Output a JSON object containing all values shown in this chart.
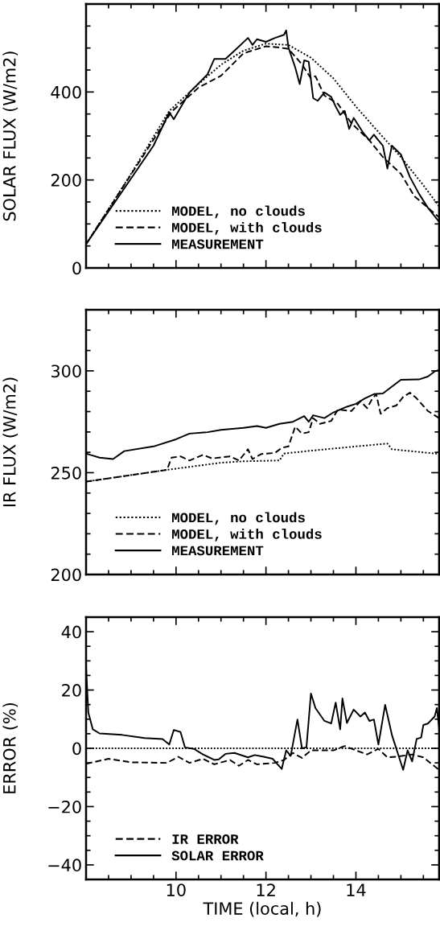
{
  "chart_data": [
    {
      "type": "line",
      "ylabel": "SOLAR FLUX (W/m2)",
      "xlim": [
        8,
        15.85
      ],
      "ylim": [
        0,
        600
      ],
      "xticks": [
        10,
        12,
        14
      ],
      "yticks": [
        0,
        200,
        400
      ],
      "tick_labels": "y",
      "legend": "bottom left",
      "series": [
        {
          "name": "MODEL, no clouds",
          "color": "#000000",
          "line_style": "dotted",
          "x": [
            8,
            9,
            9.85,
            10.5,
            11,
            11.5,
            12,
            12.5,
            13,
            13.5,
            14,
            14.5,
            15,
            15.5,
            15.85
          ],
          "values": [
            54,
            214,
            357,
            418,
            462,
            494,
            510,
            507,
            478,
            431,
            367,
            309,
            252,
            188,
            140
          ]
        },
        {
          "name": "MODEL, with clouds",
          "color": "#000000",
          "line_style": "dashed",
          "x": [
            8,
            9.9,
            10.5,
            11,
            11.5,
            12,
            12.3,
            12.5,
            12.8,
            13,
            13.1,
            13.3,
            13.6,
            13.9,
            14.3,
            14.6,
            15,
            15.3,
            15.6,
            15.85
          ],
          "values": [
            54,
            355,
            410,
            437,
            488,
            504,
            501,
            498,
            463,
            431,
            436,
            392,
            373,
            329,
            290,
            252,
            214,
            163,
            137,
            115
          ]
        },
        {
          "name": "MEASUREMENT",
          "color": "#000000",
          "line_style": "solid",
          "x": [
            8,
            9.5,
            9.85,
            9.95,
            10.15,
            10.3,
            10.7,
            10.85,
            11.1,
            11.3,
            11.6,
            11.7,
            11.8,
            12,
            12.2,
            12.4,
            12.45,
            12.5,
            12.65,
            12.75,
            12.85,
            12.95,
            13.05,
            13.15,
            13.3,
            13.45,
            13.55,
            13.65,
            13.75,
            13.85,
            13.95,
            14.15,
            14.3,
            14.4,
            14.5,
            14.6,
            14.7,
            14.8,
            15,
            15.2,
            15.4,
            15.6,
            15.85
          ],
          "values": [
            54,
            278,
            354,
            338,
            373,
            399,
            440,
            475,
            475,
            494,
            523,
            507,
            520,
            514,
            523,
            530,
            540,
            501,
            456,
            418,
            472,
            469,
            386,
            380,
            399,
            389,
            367,
            348,
            357,
            316,
            341,
            309,
            290,
            303,
            290,
            278,
            226,
            278,
            258,
            207,
            169,
            137,
            105
          ]
        }
      ]
    },
    {
      "type": "line",
      "ylabel": "IR FLUX (W/m2)",
      "xlim": [
        8,
        15.85
      ],
      "ylim": [
        200,
        330
      ],
      "xticks": [
        10,
        12,
        14
      ],
      "yticks": [
        200,
        250,
        300
      ],
      "tick_labels": "y",
      "legend": "bottom left",
      "series": [
        {
          "name": "MODEL, no clouds",
          "color": "#000000",
          "line_style": "dotted",
          "x": [
            8,
            9.8,
            11,
            11.5,
            12.3,
            12.4,
            13,
            14,
            14.7,
            14.8,
            15.85
          ],
          "values": [
            245.6,
            251.4,
            254.9,
            255.6,
            256,
            259.4,
            260.8,
            262.9,
            264.3,
            261.5,
            259.2
          ]
        },
        {
          "name": "MODEL, with clouds",
          "color": "#000000",
          "line_style": "dashed",
          "x": [
            8,
            9.8,
            9.9,
            10.1,
            10.3,
            10.6,
            10.8,
            11.2,
            11.4,
            11.6,
            11.7,
            11.9,
            12.2,
            12.35,
            12.5,
            12.65,
            12.8,
            12.95,
            13.05,
            13.2,
            13.45,
            13.6,
            13.9,
            14.1,
            14.25,
            14.35,
            14.45,
            14.55,
            14.7,
            14.9,
            15.05,
            15.2,
            15.35,
            15.6,
            15.85
          ],
          "values": [
            245.6,
            251.4,
            257.4,
            258,
            256,
            258.8,
            257,
            258,
            256,
            261.5,
            256.7,
            259.2,
            259.7,
            262.2,
            262.9,
            272.6,
            269.2,
            269.9,
            276.8,
            274,
            275.4,
            281,
            280.3,
            285.1,
            281.7,
            285.8,
            288.6,
            278.9,
            281.7,
            283,
            287.2,
            289.3,
            286.5,
            280.3,
            276.8
          ]
        },
        {
          "name": "MEASUREMENT",
          "color": "#000000",
          "line_style": "solid",
          "x": [
            8,
            8.1,
            8.3,
            8.6,
            8.85,
            9.5,
            10,
            10.3,
            10.7,
            11,
            11.5,
            11.8,
            12,
            12.3,
            12.6,
            12.85,
            12.95,
            13.05,
            13.3,
            13.5,
            13.8,
            14,
            14.2,
            14.4,
            14.6,
            15,
            15.4,
            15.6,
            15.75,
            15.85
          ],
          "values": [
            259.4,
            258.7,
            257.4,
            256.7,
            260.6,
            262.9,
            266.4,
            269.2,
            269.9,
            271,
            272,
            272.9,
            272,
            274,
            275,
            277.8,
            275,
            278.2,
            276.8,
            279.6,
            282.4,
            283.8,
            286.5,
            288.6,
            288.9,
            295.6,
            295.8,
            297.2,
            299.7,
            300.4
          ]
        }
      ]
    },
    {
      "type": "line",
      "xlabel": "TIME (local, h)",
      "ylabel": "ERROR (%)",
      "xlim": [
        8,
        15.85
      ],
      "ylim": [
        -45,
        45
      ],
      "xticks": [
        10,
        12,
        14
      ],
      "yticks": [
        {
          "value": -40,
          "label": "−40"
        },
        {
          "value": -20,
          "label": "−20"
        },
        0,
        20,
        40
      ],
      "legend": "bottom left",
      "ref_lines": [
        {
          "axis": "y",
          "value": 0,
          "color": "#000000",
          "line_style": "dotted"
        }
      ],
      "series": [
        {
          "name": "IR ERROR",
          "color": "#000000",
          "line_style": "dashed",
          "x": [
            8,
            8.5,
            9,
            9.8,
            10.05,
            10.3,
            10.6,
            10.85,
            11.2,
            11.4,
            11.6,
            11.8,
            12.2,
            12.4,
            12.6,
            12.8,
            13,
            13.5,
            13.75,
            14,
            14.25,
            14.5,
            14.7,
            14.9,
            15.25,
            15.5,
            15.85
          ],
          "values": [
            -5.3,
            -3.6,
            -4.8,
            -5,
            -2.9,
            -5,
            -3.6,
            -5.5,
            -4,
            -6,
            -4,
            -5.5,
            -5,
            -4,
            -1.6,
            -3.3,
            -0.7,
            -0.7,
            0.8,
            -0.7,
            -2.1,
            -0.2,
            -3.1,
            -2.9,
            -2.1,
            -3.1,
            -7.4
          ]
        },
        {
          "name": "SOLAR ERROR",
          "color": "#000000",
          "line_style": "solid",
          "x": [
            8,
            8.05,
            8.15,
            8.3,
            8.8,
            9.3,
            9.7,
            9.85,
            9.95,
            10.1,
            10.2,
            10.4,
            10.6,
            10.85,
            10.95,
            11.1,
            11.3,
            11.6,
            11.75,
            11.95,
            12.15,
            12.35,
            12.45,
            12.55,
            12.7,
            12.8,
            12.9,
            13,
            13.1,
            13.3,
            13.45,
            13.55,
            13.65,
            13.7,
            13.8,
            13.95,
            14.1,
            14.2,
            14.3,
            14.4,
            14.5,
            14.65,
            14.8,
            15.05,
            15.15,
            15.25,
            15.35,
            15.45,
            15.5,
            15.6,
            15.75,
            15.8,
            15.85
          ],
          "values": [
            28,
            12.3,
            6.5,
            5.1,
            4.6,
            3.5,
            3.2,
            1.3,
            6.3,
            5.6,
            0.3,
            -0.2,
            -2.1,
            -4,
            -3.8,
            -1.9,
            -1.6,
            -3.1,
            -2.3,
            -2.9,
            -3.6,
            -7.1,
            -0.7,
            -2.6,
            9.9,
            0,
            0.3,
            18.8,
            13.8,
            9.4,
            8.5,
            15.7,
            6.5,
            17.1,
            8.7,
            13.3,
            10.9,
            12.3,
            9.4,
            9.9,
            1.3,
            14.9,
            4.6,
            -7.4,
            -0.7,
            -4.5,
            3.2,
            3.7,
            8,
            8.5,
            10.9,
            13.8,
            7
          ]
        }
      ]
    }
  ]
}
